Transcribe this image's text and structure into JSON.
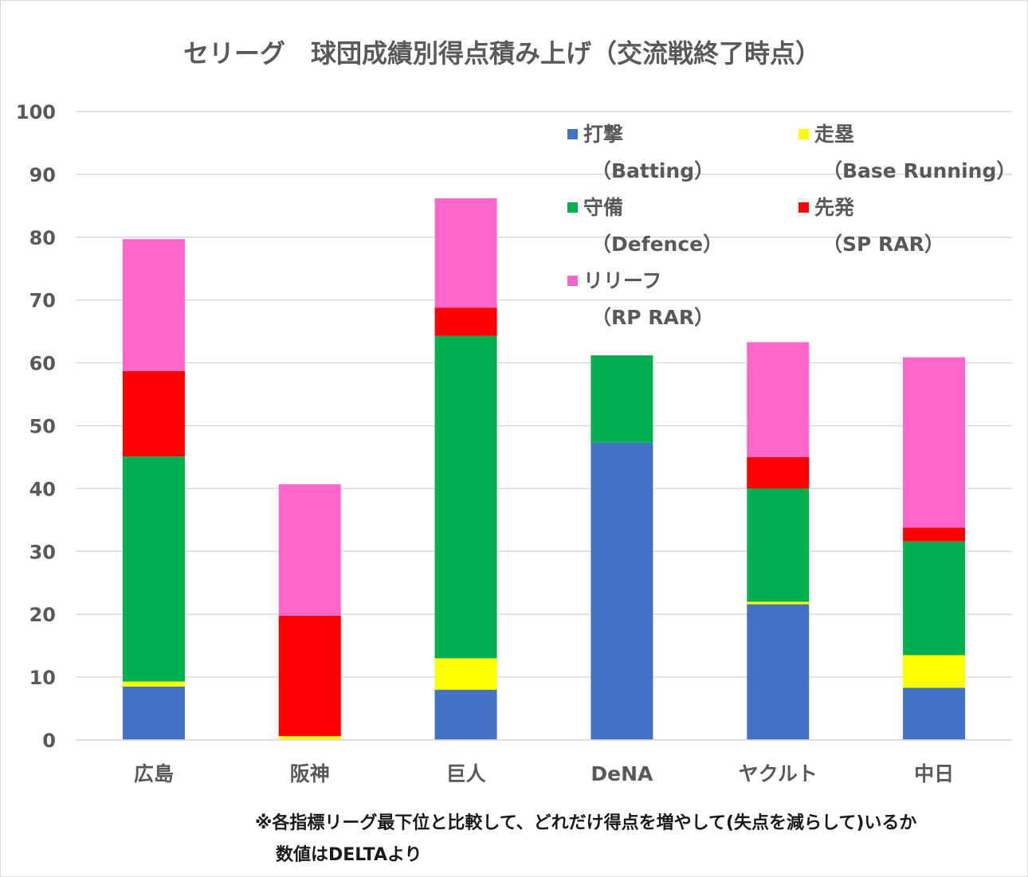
{
  "chart_data": {
    "type": "bar",
    "stacked": true,
    "title": "セリーグ　球団成績別得点積み上げ（交流戦終了時点）",
    "categories": [
      "広島",
      "阪神",
      "巨人",
      "DeNA",
      "ヤクルト",
      "中日"
    ],
    "ylim": [
      0,
      100
    ],
    "yticks": [
      0,
      10,
      20,
      30,
      40,
      50,
      60,
      70,
      80,
      90,
      100
    ],
    "grid": true,
    "legend_position": "top-right",
    "series": [
      {
        "name": "打撃",
        "sub": "（Batting）",
        "color": "#4472C4",
        "values": [
          8.5,
          0,
          8.0,
          47.3,
          21.6,
          8.3
        ]
      },
      {
        "name": "走塁",
        "sub": "（Base Running）",
        "color": "#FFFF00",
        "values": [
          0.8,
          0.6,
          5.0,
          0,
          0.4,
          5.2
        ]
      },
      {
        "name": "守備",
        "sub": "（Defence）",
        "color": "#00B050",
        "values": [
          35.8,
          0,
          51.3,
          13.9,
          18.0,
          18.1
        ]
      },
      {
        "name": "先発",
        "sub": "（SP RAR）",
        "color": "#FF0000",
        "values": [
          13.6,
          19.2,
          4.5,
          0,
          5.0,
          2.2
        ]
      },
      {
        "name": "リリーフ",
        "sub": "（RP RAR）",
        "color": "#FF66CC",
        "values": [
          21.0,
          20.9,
          17.4,
          0,
          18.3,
          27.1
        ]
      }
    ]
  },
  "notes": {
    "line1": "※各指標リーグ最下位と比較して、どれだけ得点を増やして(失点を減らして)いるか",
    "line2": "数値はDELTAより"
  }
}
